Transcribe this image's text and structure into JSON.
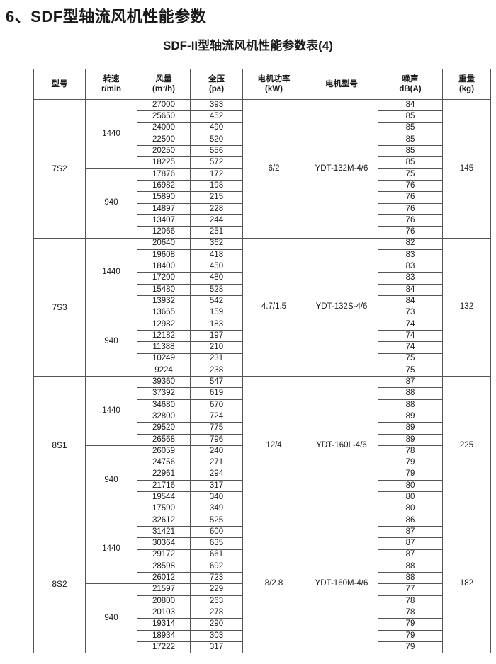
{
  "title": "6、SDF型轴流风机性能参数",
  "subtitle": "SDF-II型轴流风机性能参数表(4)",
  "headers": [
    [
      "型号",
      ""
    ],
    [
      "转速",
      "r/min"
    ],
    [
      "风量",
      "(m³/h)"
    ],
    [
      "全压",
      "(pa)"
    ],
    [
      "电机功率",
      "(kW)"
    ],
    [
      "电机型号",
      ""
    ],
    [
      "噪声",
      "dB(A)"
    ],
    [
      "重量",
      "(kg)"
    ]
  ],
  "models": [
    {
      "model": "7S2",
      "power": "6/2",
      "motor": "YDT-132M-4/6",
      "weight": "145",
      "speeds": [
        {
          "speed": "1440",
          "rows": [
            [
              "27000",
              "393",
              "84"
            ],
            [
              "25650",
              "452",
              "85"
            ],
            [
              "24000",
              "490",
              "85"
            ],
            [
              "22500",
              "520",
              "85"
            ],
            [
              "20250",
              "556",
              "85"
            ],
            [
              "18225",
              "572",
              "85"
            ]
          ]
        },
        {
          "speed": "940",
          "rows": [
            [
              "17876",
              "172",
              "75"
            ],
            [
              "16982",
              "198",
              "76"
            ],
            [
              "15890",
              "215",
              "76"
            ],
            [
              "14897",
              "228",
              "76"
            ],
            [
              "13407",
              "244",
              "76"
            ],
            [
              "12066",
              "251",
              "76"
            ]
          ]
        }
      ]
    },
    {
      "model": "7S3",
      "power": "4.7/1.5",
      "motor": "YDT-132S-4/6",
      "weight": "132",
      "speeds": [
        {
          "speed": "1440",
          "rows": [
            [
              "20640",
              "362",
              "82"
            ],
            [
              "19608",
              "418",
              "83"
            ],
            [
              "18400",
              "450",
              "83"
            ],
            [
              "17200",
              "480",
              "83"
            ],
            [
              "15480",
              "528",
              "84"
            ],
            [
              "13932",
              "542",
              "84"
            ]
          ]
        },
        {
          "speed": "940",
          "rows": [
            [
              "13665",
              "159",
              "73"
            ],
            [
              "12982",
              "183",
              "74"
            ],
            [
              "12182",
              "197",
              "74"
            ],
            [
              "11388",
              "210",
              "74"
            ],
            [
              "10249",
              "231",
              "75"
            ],
            [
              "9224",
              "238",
              "75"
            ]
          ]
        }
      ]
    },
    {
      "model": "8S1",
      "power": "12/4",
      "motor": "YDT-160L-4/6",
      "weight": "225",
      "speeds": [
        {
          "speed": "1440",
          "rows": [
            [
              "39360",
              "547",
              "87"
            ],
            [
              "37392",
              "619",
              "88"
            ],
            [
              "34680",
              "670",
              "88"
            ],
            [
              "32800",
              "724",
              "89"
            ],
            [
              "29520",
              "775",
              "89"
            ],
            [
              "26568",
              "796",
              "89"
            ]
          ]
        },
        {
          "speed": "940",
          "rows": [
            [
              "26059",
              "240",
              "78"
            ],
            [
              "24756",
              "271",
              "79"
            ],
            [
              "22961",
              "294",
              "79"
            ],
            [
              "21716",
              "317",
              "80"
            ],
            [
              "19544",
              "340",
              "80"
            ],
            [
              "17590",
              "349",
              "80"
            ]
          ]
        }
      ]
    },
    {
      "model": "8S2",
      "power": "8/2.8",
      "motor": "YDT-160M-4/6",
      "weight": "182",
      "speeds": [
        {
          "speed": "1440",
          "rows": [
            [
              "32612",
              "525",
              "86"
            ],
            [
              "31421",
              "600",
              "87"
            ],
            [
              "30364",
              "635",
              "87"
            ],
            [
              "29172",
              "661",
              "87"
            ],
            [
              "28598",
              "692",
              "88"
            ],
            [
              "26012",
              "723",
              "88"
            ]
          ]
        },
        {
          "speed": "940",
          "rows": [
            [
              "21597",
              "229",
              "77"
            ],
            [
              "20800",
              "263",
              "78"
            ],
            [
              "20103",
              "278",
              "78"
            ],
            [
              "19314",
              "290",
              "79"
            ],
            [
              "18934",
              "303",
              "79"
            ],
            [
              "17222",
              "317",
              "79"
            ]
          ]
        }
      ]
    }
  ]
}
